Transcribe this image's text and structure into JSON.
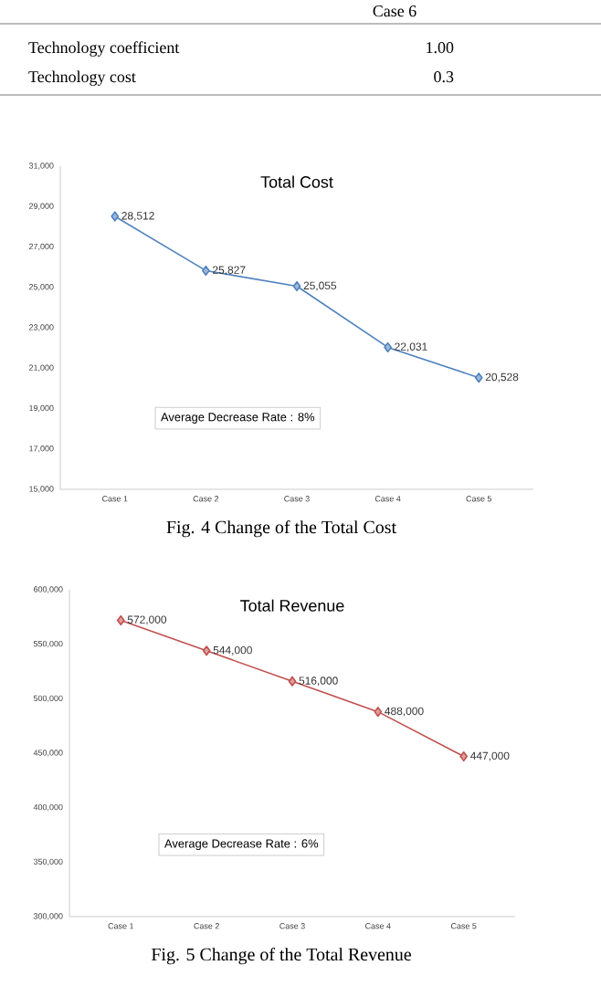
{
  "chart_data": [
    {
      "type": "other",
      "annotations": [
        "Case 6",
        "Technology coefficient",
        "1.00",
        "Technology cost",
        "0.3"
      ]
    },
    {
      "type": "line",
      "title": "Total Cost",
      "categories": [
        "Case 1",
        "Case 2",
        "Case 3",
        "Case 4",
        "Case 5"
      ],
      "series": [
        {
          "color": "#4f81bd",
          "values": [
            28512,
            25827,
            25055,
            22031,
            20528
          ],
          "value_labels": [
            "28,512",
            "25,827",
            "25,055",
            "22,031",
            "20,528"
          ]
        }
      ],
      "ylim": [
        15000,
        31000
      ],
      "yticks": [
        {
          "value": 15000,
          "label": "15,000"
        },
        {
          "value": 17000,
          "label": "17,000"
        },
        {
          "value": 19000,
          "label": "19,000"
        },
        {
          "value": 21000,
          "label": "21,000"
        },
        {
          "value": 23000,
          "label": "23,000"
        },
        {
          "value": 25000,
          "label": "25,000"
        },
        {
          "value": 27000,
          "label": "27,000"
        },
        {
          "value": 29000,
          "label": "29,000"
        },
        {
          "value": 31000,
          "label": "31,000"
        }
      ],
      "marker": "diamond",
      "line_style": "solid",
      "grid": false,
      "annotations": [
        "Average Decrease Rate : 8%",
        "Fig. 4 Change of the Total Cost"
      ]
    },
    {
      "type": "line",
      "title": "Total Revenue",
      "categories": [
        "Case 1",
        "Case 2",
        "Case 3",
        "Case 4",
        "Case 5"
      ],
      "series": [
        {
          "color": "#c0504d",
          "values": [
            572000,
            544000,
            516000,
            488000,
            447000
          ],
          "value_labels": [
            "572,000",
            "544,000",
            "516,000",
            "488,000",
            "447,000"
          ]
        }
      ],
      "ylim": [
        300000,
        600000
      ],
      "yticks": [
        {
          "value": 300000,
          "label": "300,000"
        },
        {
          "value": 350000,
          "label": "350,000"
        },
        {
          "value": 400000,
          "label": "400,000"
        },
        {
          "value": 450000,
          "label": "450,000"
        },
        {
          "value": 500000,
          "label": "500,000"
        },
        {
          "value": 550000,
          "label": "550,000"
        },
        {
          "value": 600000,
          "label": "600,000"
        }
      ],
      "marker": "diamond",
      "line_style": "solid",
      "grid": false,
      "annotations": [
        "Average Decrease Rate : 6%",
        "Fig. 5 Change of the Total Revenue"
      ]
    }
  ]
}
